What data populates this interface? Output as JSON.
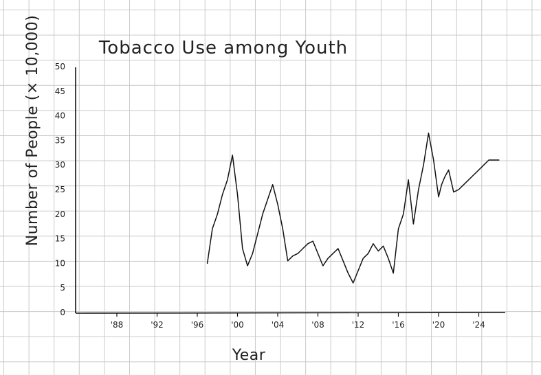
{
  "chart_data": {
    "type": "line",
    "title": "Tobacco Use among Youth",
    "xlabel": "Year",
    "ylabel": "Number of People (× 10,000)",
    "x_ticks": [
      "'88",
      "'92",
      "'96",
      "'00",
      "'04",
      "'08",
      "'12",
      "'16",
      "'20",
      "'24"
    ],
    "y_ticks": [
      "0",
      "5",
      "10",
      "15",
      "20",
      "25",
      "30",
      "35",
      "40",
      "45",
      "50"
    ],
    "xlim": [
      1984,
      2026
    ],
    "ylim": [
      0,
      50
    ],
    "grid": true,
    "series": [
      {
        "x": [
          1997,
          1997.5,
          1998,
          1998.5,
          1999,
          1999.5,
          2000,
          2000.5,
          2001,
          2001.5,
          2002,
          2002.5,
          2003,
          2003.5,
          2004,
          2004.5,
          2005,
          2005.5,
          2006,
          2006.5,
          2007,
          2007.5,
          2008,
          2008.5,
          2009,
          2009.5,
          2010,
          2010.5,
          2011,
          2011.5,
          2012,
          2012.5,
          2013,
          2013.5,
          2014,
          2014.5,
          2015,
          2015.5,
          2016,
          2016.5,
          2017,
          2017.5,
          2018,
          2018.5,
          2019,
          2019.5,
          2020,
          2020.3,
          2020.6,
          2021,
          2021.5,
          2022,
          2022.5,
          2023,
          2023.5,
          2024,
          2024.5,
          2025,
          2025.5,
          2026
        ],
        "y": [
          10,
          17,
          20,
          24,
          27,
          32,
          24,
          13,
          9.5,
          12,
          16,
          20,
          23,
          26,
          22,
          17,
          10.5,
          11.5,
          12,
          13,
          14,
          14.5,
          12,
          9.5,
          11,
          12,
          13,
          10.5,
          8,
          6,
          8.5,
          11,
          12,
          14,
          12.5,
          13.5,
          11,
          8,
          17,
          20,
          27,
          18,
          25,
          30,
          36.5,
          31,
          23.5,
          26,
          27.5,
          29,
          24.5,
          25,
          26,
          27,
          28,
          29,
          30,
          31,
          31,
          31
        ]
      }
    ]
  }
}
